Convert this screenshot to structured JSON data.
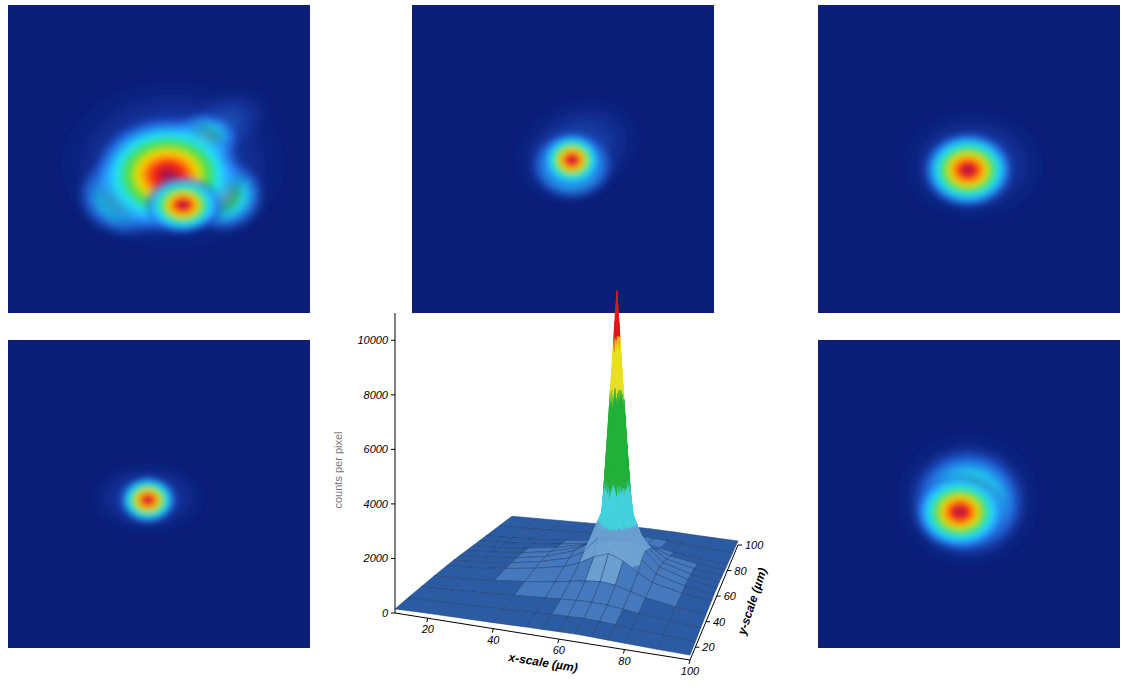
{
  "chart_data": {
    "type": "surface",
    "xlabel": "x-scale (µm)",
    "ylabel": "y-scale (µm)",
    "zlabel": "counts per pixel",
    "x": [
      10,
      20,
      30,
      40,
      50,
      55,
      60,
      65,
      70,
      75,
      80,
      90,
      100
    ],
    "y": [
      10,
      20,
      30,
      40,
      50,
      55,
      60,
      65,
      70,
      75,
      80,
      90,
      100
    ],
    "z": [
      [
        150,
        180,
        200,
        220,
        250,
        260,
        270,
        280,
        270,
        250,
        230,
        200,
        180
      ],
      [
        180,
        220,
        260,
        300,
        350,
        380,
        400,
        420,
        400,
        360,
        320,
        260,
        200
      ],
      [
        200,
        260,
        320,
        400,
        480,
        520,
        560,
        580,
        560,
        500,
        420,
        320,
        240
      ],
      [
        220,
        280,
        380,
        500,
        650,
        750,
        850,
        900,
        850,
        700,
        550,
        380,
        260
      ],
      [
        230,
        300,
        420,
        580,
        800,
        1000,
        1300,
        1500,
        1300,
        950,
        650,
        420,
        280
      ],
      [
        230,
        300,
        430,
        620,
        900,
        1200,
        1800,
        2600,
        1900,
        1200,
        750,
        450,
        290
      ],
      [
        220,
        290,
        420,
        600,
        950,
        1300,
        2600,
        10700,
        2800,
        1300,
        780,
        460,
        290
      ],
      [
        210,
        280,
        400,
        580,
        880,
        1150,
        1900,
        3000,
        2000,
        1150,
        720,
        430,
        280
      ],
      [
        200,
        260,
        370,
        520,
        760,
        950,
        1200,
        1500,
        1250,
        950,
        620,
        400,
        260
      ],
      [
        190,
        240,
        330,
        450,
        600,
        720,
        850,
        950,
        850,
        700,
        520,
        350,
        240
      ],
      [
        180,
        220,
        290,
        380,
        480,
        550,
        620,
        650,
        600,
        520,
        420,
        300,
        220
      ],
      [
        160,
        190,
        230,
        280,
        330,
        360,
        380,
        390,
        370,
        340,
        290,
        230,
        180
      ],
      [
        140,
        160,
        180,
        200,
        220,
        230,
        240,
        240,
        230,
        220,
        200,
        170,
        150
      ]
    ],
    "xlim": [
      10,
      100
    ],
    "ylim": [
      10,
      100
    ],
    "zlim": [
      0,
      11000
    ],
    "xticks": [
      20,
      40,
      60,
      80,
      100
    ],
    "yticks": [
      20,
      40,
      60,
      80,
      100
    ],
    "zticks": [
      0,
      2000,
      4000,
      6000,
      8000,
      10000
    ]
  }
}
